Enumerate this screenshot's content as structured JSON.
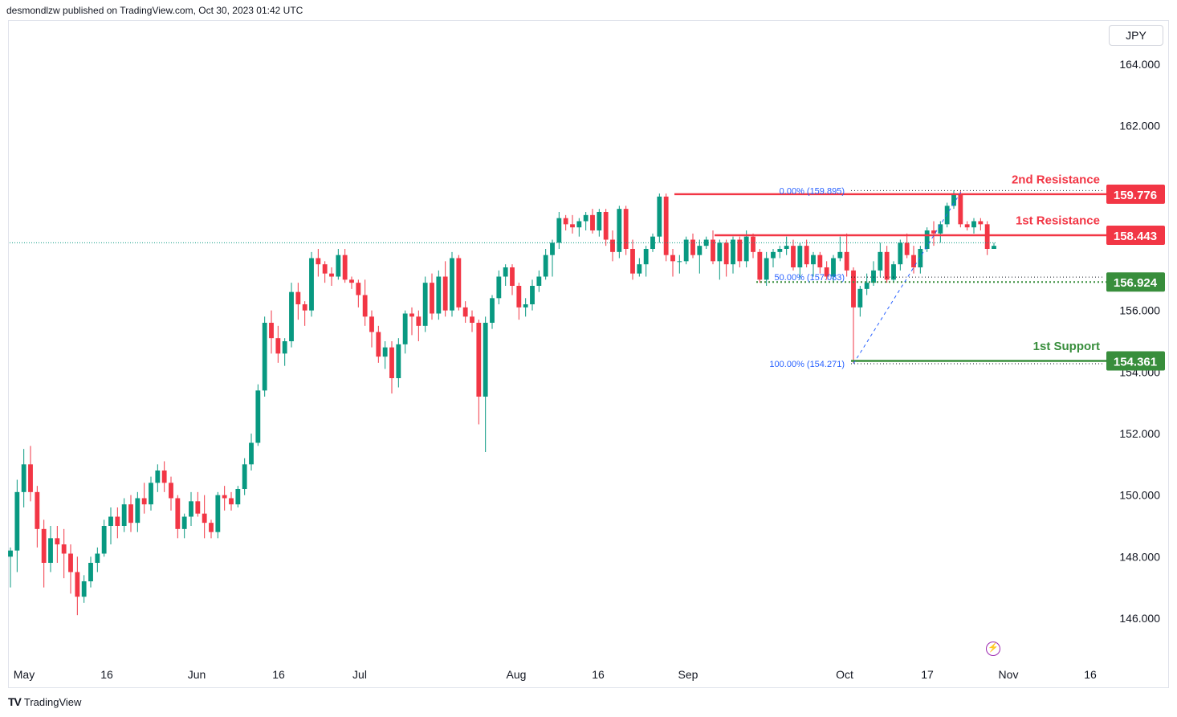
{
  "header": {
    "publisher": "desmondlzw published on TradingView.com, Oct 30, 2023 01:42 UTC"
  },
  "currency": "JPY",
  "footer": {
    "logo_mark": "TV",
    "logo_text": "TradingView"
  },
  "chart_data": {
    "type": "candlestick",
    "ylim": [
      145.0,
      165.6
    ],
    "y_ticks": [
      "164.000",
      "162.000",
      "156.000",
      "154.000",
      "152.000",
      "150.000",
      "148.000",
      "146.000"
    ],
    "x_labels": [
      "May",
      "16",
      "Jun",
      "16",
      "Jul",
      "Aug",
      "16",
      "Sep",
      "Oct",
      "17",
      "Nov",
      "16"
    ],
    "colors": {
      "up": "#089981",
      "down": "#f23645",
      "resistance": "#f23645",
      "support": "#388e3c",
      "fib": "#2962ff"
    },
    "price_labels": [
      {
        "value": "159.776",
        "color": "#f23645"
      },
      {
        "value": "158.443",
        "color": "#f23645"
      },
      {
        "value": "156.924",
        "color": "#388e3c"
      },
      {
        "value": "154.361",
        "color": "#388e3c"
      }
    ],
    "annotations": [
      {
        "text": "2nd Resistance",
        "color": "#f23645"
      },
      {
        "text": "1st Resistance",
        "color": "#f23645"
      },
      {
        "text": "1st Support",
        "color": "#388e3c"
      }
    ],
    "fib_labels": [
      "0.00% (159.895)",
      "50.00% (157.083)",
      "100.00% (154.271)"
    ],
    "levels": {
      "second_resistance": 159.776,
      "first_resistance": 158.443,
      "support_dotted": 156.924,
      "first_support": 154.361,
      "fib_0": 159.895,
      "fib_50": 157.083,
      "fib_100": 154.271,
      "last_price": 158.2
    },
    "candles_ohlc": [
      [
        148.0,
        148.3,
        147.0,
        148.2
      ],
      [
        148.2,
        150.5,
        147.5,
        150.1
      ],
      [
        150.1,
        151.5,
        149.6,
        151.0
      ],
      [
        151.0,
        151.6,
        149.8,
        150.1
      ],
      [
        150.1,
        150.3,
        148.3,
        148.9
      ],
      [
        148.9,
        149.2,
        147.0,
        147.8
      ],
      [
        147.8,
        149.0,
        147.5,
        148.6
      ],
      [
        148.6,
        149.0,
        147.8,
        148.4
      ],
      [
        148.4,
        148.9,
        147.3,
        148.1
      ],
      [
        148.1,
        148.4,
        146.8,
        147.5
      ],
      [
        147.5,
        148.0,
        146.1,
        146.7
      ],
      [
        146.7,
        147.4,
        146.5,
        147.2
      ],
      [
        147.2,
        148.0,
        147.0,
        147.8
      ],
      [
        147.8,
        148.3,
        147.5,
        148.1
      ],
      [
        148.1,
        149.2,
        148.0,
        149.0
      ],
      [
        149.0,
        149.6,
        148.4,
        149.3
      ],
      [
        149.3,
        149.6,
        148.6,
        149.0
      ],
      [
        149.0,
        149.9,
        148.8,
        149.7
      ],
      [
        149.7,
        150.0,
        148.8,
        149.1
      ],
      [
        149.1,
        150.1,
        148.8,
        149.9
      ],
      [
        149.9,
        150.4,
        149.4,
        149.7
      ],
      [
        149.7,
        150.6,
        149.5,
        150.4
      ],
      [
        150.4,
        151.0,
        150.1,
        150.8
      ],
      [
        150.8,
        151.1,
        150.1,
        150.4
      ],
      [
        150.4,
        150.6,
        149.5,
        149.9
      ],
      [
        149.9,
        150.0,
        148.6,
        148.9
      ],
      [
        148.9,
        149.4,
        148.6,
        149.3
      ],
      [
        149.3,
        150.1,
        149.0,
        149.8
      ],
      [
        149.8,
        150.1,
        149.3,
        149.4
      ],
      [
        149.4,
        150.0,
        148.6,
        149.1
      ],
      [
        149.1,
        149.2,
        148.6,
        148.8
      ],
      [
        148.8,
        150.1,
        148.6,
        150.0
      ],
      [
        150.0,
        150.3,
        149.5,
        149.9
      ],
      [
        149.9,
        150.1,
        149.5,
        149.7
      ],
      [
        149.7,
        150.3,
        149.6,
        150.2
      ],
      [
        150.2,
        151.2,
        150.0,
        151.0
      ],
      [
        151.0,
        152.0,
        150.8,
        151.7
      ],
      [
        151.7,
        153.6,
        151.6,
        153.4
      ],
      [
        153.4,
        155.8,
        153.2,
        155.6
      ],
      [
        155.6,
        156.0,
        154.6,
        155.1
      ],
      [
        155.1,
        155.5,
        154.3,
        154.6
      ],
      [
        154.6,
        155.1,
        154.2,
        155.0
      ],
      [
        155.0,
        156.9,
        154.8,
        156.6
      ],
      [
        156.6,
        156.9,
        155.7,
        156.2
      ],
      [
        156.2,
        156.3,
        155.5,
        156.0
      ],
      [
        156.0,
        157.9,
        155.8,
        157.7
      ],
      [
        157.7,
        158.0,
        157.1,
        157.5
      ],
      [
        157.5,
        157.6,
        156.9,
        157.2
      ],
      [
        157.2,
        157.4,
        156.8,
        157.1
      ],
      [
        157.1,
        158.0,
        157.0,
        157.8
      ],
      [
        157.8,
        158.0,
        156.9,
        157.0
      ],
      [
        157.0,
        157.1,
        156.7,
        156.9
      ],
      [
        156.9,
        157.0,
        156.1,
        156.5
      ],
      [
        156.5,
        157.0,
        155.5,
        155.8
      ],
      [
        155.8,
        156.0,
        154.8,
        155.3
      ],
      [
        155.3,
        155.5,
        154.3,
        154.5
      ],
      [
        154.5,
        155.0,
        154.1,
        154.8
      ],
      [
        154.8,
        155.0,
        153.3,
        153.8
      ],
      [
        153.8,
        155.1,
        153.5,
        154.9
      ],
      [
        154.9,
        156.0,
        154.6,
        155.9
      ],
      [
        155.9,
        156.1,
        155.2,
        155.8
      ],
      [
        155.8,
        156.0,
        155.0,
        155.5
      ],
      [
        155.5,
        157.1,
        155.3,
        156.9
      ],
      [
        156.9,
        157.2,
        155.7,
        155.9
      ],
      [
        155.9,
        157.3,
        155.7,
        157.1
      ],
      [
        157.1,
        157.6,
        155.8,
        156.0
      ],
      [
        156.0,
        157.9,
        155.8,
        157.7
      ],
      [
        157.7,
        157.8,
        156.0,
        156.1
      ],
      [
        156.1,
        156.3,
        155.6,
        155.8
      ],
      [
        155.8,
        156.0,
        155.3,
        155.6
      ],
      [
        155.6,
        155.7,
        152.3,
        153.2
      ],
      [
        153.2,
        155.8,
        151.4,
        155.6
      ],
      [
        155.6,
        156.5,
        155.4,
        156.4
      ],
      [
        156.4,
        157.3,
        156.2,
        157.1
      ],
      [
        157.1,
        157.5,
        156.8,
        157.4
      ],
      [
        157.4,
        157.5,
        156.5,
        156.8
      ],
      [
        156.8,
        156.9,
        155.7,
        156.1
      ],
      [
        156.1,
        156.4,
        155.8,
        156.2
      ],
      [
        156.2,
        157.0,
        156.0,
        156.8
      ],
      [
        156.8,
        157.3,
        156.6,
        157.1
      ],
      [
        157.1,
        158.0,
        157.0,
        157.8
      ],
      [
        157.8,
        158.3,
        157.1,
        158.2
      ],
      [
        158.2,
        159.2,
        158.0,
        159.0
      ],
      [
        159.0,
        159.1,
        158.6,
        158.8
      ],
      [
        158.8,
        159.1,
        158.5,
        158.7
      ],
      [
        158.7,
        159.0,
        158.4,
        158.9
      ],
      [
        158.9,
        159.2,
        158.6,
        159.1
      ],
      [
        159.1,
        159.3,
        158.5,
        158.6
      ],
      [
        158.6,
        159.3,
        158.4,
        159.2
      ],
      [
        159.2,
        159.3,
        158.1,
        158.3
      ],
      [
        158.3,
        158.6,
        157.6,
        157.9
      ],
      [
        157.9,
        159.4,
        157.7,
        159.3
      ],
      [
        159.3,
        159.4,
        157.8,
        158.0
      ],
      [
        158.0,
        158.3,
        157.0,
        157.2
      ],
      [
        157.2,
        157.7,
        157.1,
        157.5
      ],
      [
        157.5,
        158.1,
        157.1,
        158.0
      ],
      [
        158.0,
        158.5,
        157.9,
        158.4
      ],
      [
        158.4,
        159.8,
        158.2,
        159.7
      ],
      [
        159.7,
        159.8,
        157.6,
        157.8
      ],
      [
        157.8,
        158.0,
        157.1,
        157.6
      ],
      [
        157.6,
        157.8,
        157.2,
        157.6
      ],
      [
        157.6,
        158.4,
        157.5,
        158.3
      ],
      [
        158.3,
        158.5,
        157.7,
        157.8
      ],
      [
        157.8,
        158.3,
        157.2,
        158.1
      ],
      [
        158.1,
        158.4,
        158.0,
        158.3
      ],
      [
        158.3,
        158.6,
        157.5,
        157.6
      ],
      [
        157.6,
        158.3,
        157.0,
        158.2
      ],
      [
        158.2,
        158.3,
        157.1,
        157.5
      ],
      [
        157.5,
        158.4,
        157.2,
        158.3
      ],
      [
        158.3,
        158.4,
        157.4,
        157.6
      ],
      [
        157.6,
        158.6,
        157.4,
        158.4
      ],
      [
        158.4,
        158.5,
        157.7,
        157.9
      ],
      [
        157.9,
        158.0,
        156.9,
        157.0
      ],
      [
        157.0,
        157.9,
        156.8,
        157.7
      ],
      [
        157.7,
        158.0,
        157.4,
        157.9
      ],
      [
        157.9,
        158.1,
        157.7,
        158.0
      ],
      [
        158.0,
        158.4,
        157.8,
        158.1
      ],
      [
        158.1,
        158.3,
        157.3,
        157.4
      ],
      [
        157.4,
        158.2,
        157.0,
        158.1
      ],
      [
        158.1,
        158.3,
        157.4,
        157.5
      ],
      [
        157.5,
        157.9,
        157.1,
        157.8
      ],
      [
        157.8,
        157.9,
        157.2,
        157.4
      ],
      [
        157.4,
        157.6,
        157.0,
        157.1
      ],
      [
        157.1,
        157.8,
        156.9,
        157.7
      ],
      [
        157.7,
        158.4,
        157.6,
        157.9
      ],
      [
        157.9,
        158.5,
        157.1,
        157.3
      ],
      [
        157.3,
        157.4,
        154.3,
        156.1
      ],
      [
        156.1,
        156.8,
        155.8,
        156.7
      ],
      [
        156.7,
        157.2,
        156.5,
        156.9
      ],
      [
        156.9,
        157.6,
        156.8,
        157.3
      ],
      [
        157.3,
        158.2,
        157.1,
        157.9
      ],
      [
        157.9,
        158.1,
        156.9,
        157.0
      ],
      [
        157.0,
        157.6,
        156.9,
        157.5
      ],
      [
        157.5,
        158.3,
        157.3,
        158.2
      ],
      [
        158.2,
        158.5,
        157.7,
        157.8
      ],
      [
        157.8,
        158.1,
        157.2,
        157.4
      ],
      [
        157.4,
        158.1,
        157.2,
        158.0
      ],
      [
        158.0,
        158.7,
        157.9,
        158.6
      ],
      [
        158.6,
        158.9,
        158.1,
        158.5
      ],
      [
        158.5,
        158.9,
        158.2,
        158.8
      ],
      [
        158.8,
        159.5,
        158.7,
        159.4
      ],
      [
        159.4,
        159.9,
        159.3,
        159.8
      ],
      [
        159.8,
        159.9,
        158.7,
        158.8
      ],
      [
        158.8,
        158.9,
        158.6,
        158.7
      ],
      [
        158.7,
        159.0,
        158.5,
        158.9
      ],
      [
        158.9,
        159.0,
        158.6,
        158.8
      ],
      [
        158.8,
        158.9,
        157.8,
        158.0
      ],
      [
        158.0,
        158.2,
        158.0,
        158.1
      ]
    ]
  }
}
